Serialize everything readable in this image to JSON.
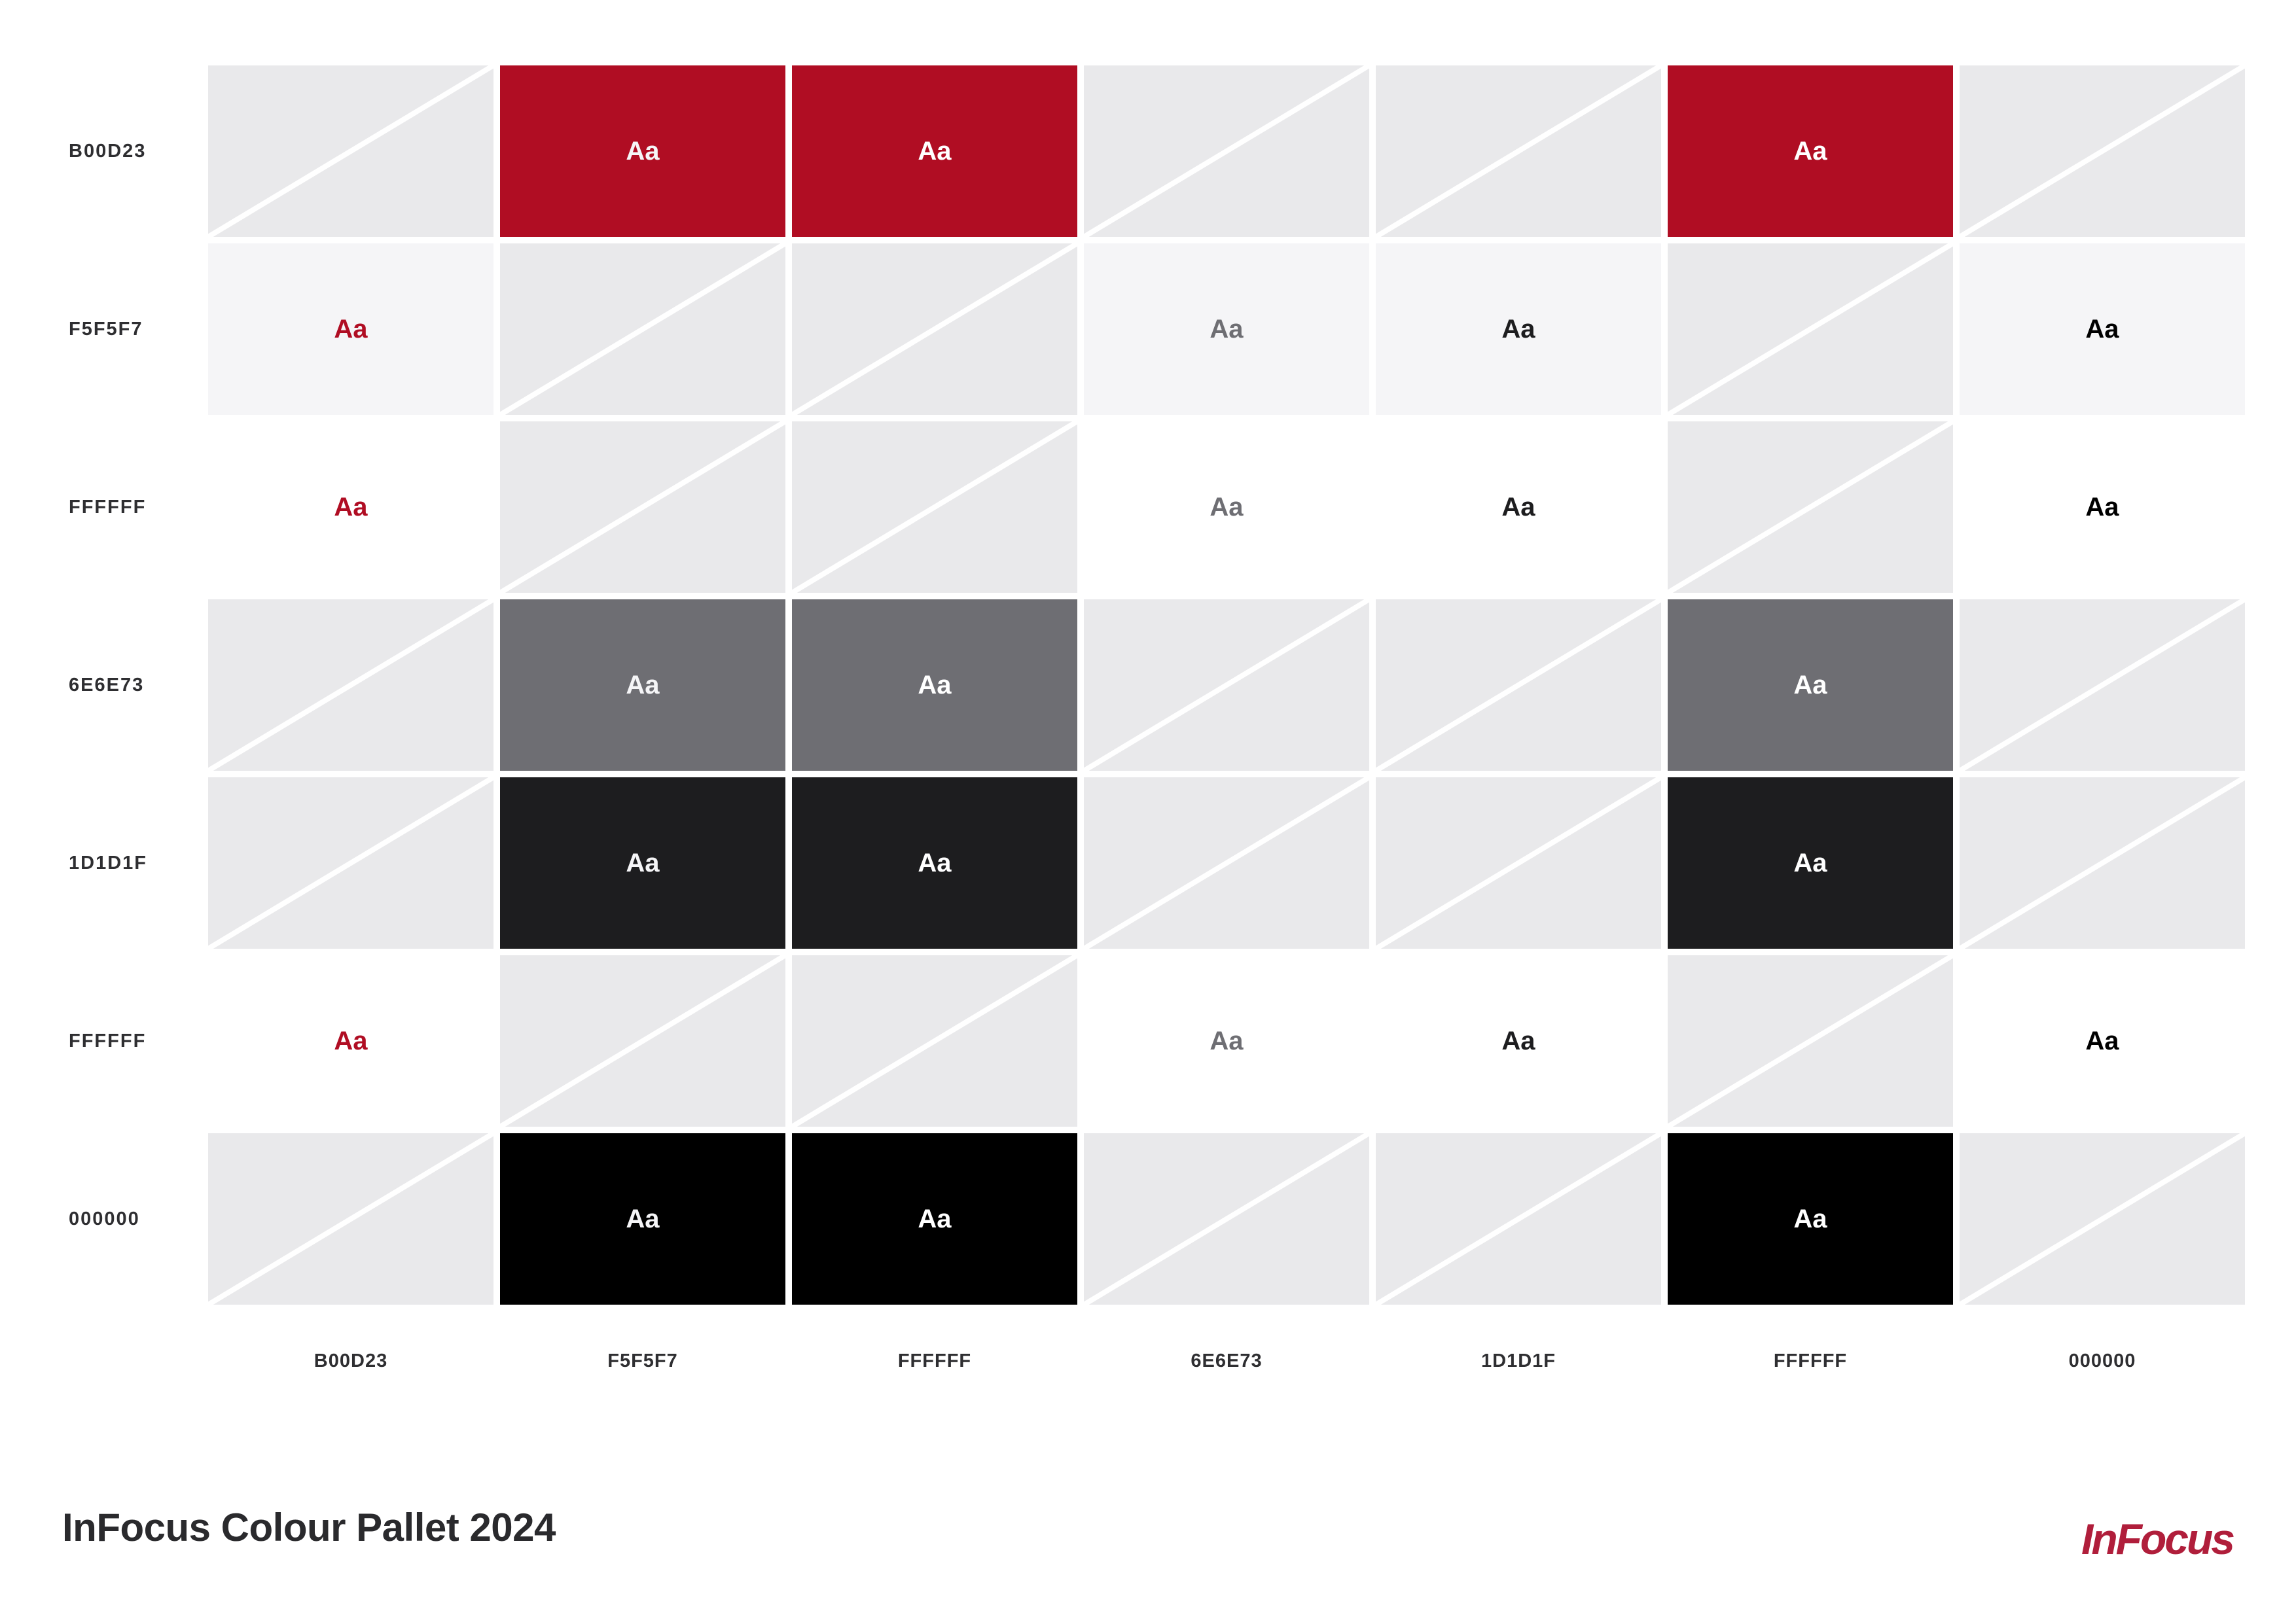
{
  "matrix": {
    "sample_text": "Aa",
    "row_labels": [
      "B00D23",
      "F5F5F7",
      "FFFFFF",
      "6E6E73",
      "1D1D1F",
      "FFFFFF",
      "000000"
    ],
    "col_labels": [
      "B00D23",
      "F5F5F7",
      "FFFFFF",
      "6E6E73",
      "1D1D1F",
      "FFFFFF",
      "000000"
    ],
    "row_colors": [
      "#B00D23",
      "#F5F5F7",
      "#FFFFFF",
      "#6E6E73",
      "#1D1D1F",
      "#FFFFFF",
      "#000000"
    ],
    "col_colors": [
      "#B00D23",
      "#F5F5F7",
      "#FFFFFF",
      "#6E6E73",
      "#1D1D1F",
      "#FFFFFF",
      "#000000"
    ],
    "valid": [
      [
        0,
        1,
        1,
        0,
        0,
        1,
        0
      ],
      [
        1,
        0,
        0,
        1,
        1,
        0,
        1
      ],
      [
        1,
        0,
        0,
        1,
        1,
        0,
        1
      ],
      [
        0,
        1,
        1,
        0,
        0,
        1,
        0
      ],
      [
        0,
        1,
        1,
        0,
        0,
        1,
        0
      ],
      [
        1,
        0,
        0,
        1,
        1,
        0,
        1
      ],
      [
        0,
        1,
        1,
        0,
        0,
        1,
        0
      ]
    ]
  },
  "footer": {
    "title": "InFocus Colour Pallet 2024",
    "logo_text": "InFocus"
  },
  "colors": {
    "page_background": "#FFFFFF",
    "placeholder_cell": "#E9E9EB",
    "diagonal_line": "#FFFFFF",
    "label_text": "#2E2E31",
    "title_text": "#2A2A2D",
    "logo_red": "#B01E3B",
    "palette_red": "#B00D23",
    "palette_light_gray": "#F5F5F7",
    "palette_white": "#FFFFFF",
    "palette_mid_gray": "#6E6E73",
    "palette_dark_gray": "#1D1D1F",
    "palette_black": "#000000"
  }
}
